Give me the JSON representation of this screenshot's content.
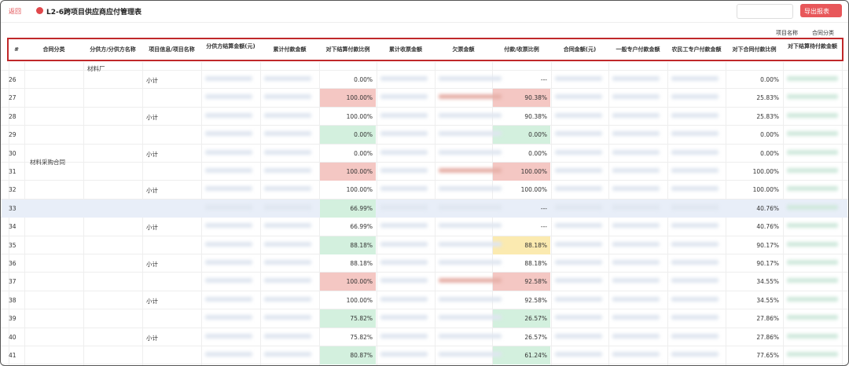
{
  "header": {
    "back": "返回",
    "title": "L2-6跨项目供应商应付管理表",
    "export": "导出报表"
  },
  "filters": [
    "项目名称",
    "合同分类"
  ],
  "table": {
    "columns": [
      "#",
      "合同分类",
      "分供方/分供方名称",
      "项目信息/项目名称",
      "分供方结算金额(元)",
      "累计付款金额",
      "对下结算付款比例",
      "累计收票金额",
      "欠票金额",
      "付款/收票比例",
      "合同金额(元)",
      "一般专户付款金额",
      "农民工专户付款金额",
      "对下合同付款比例",
      "对下结算待付款金额"
    ],
    "supplier_name": "材料厂",
    "contract_category": "材料采购合同",
    "rows": [
      {
        "no": "26",
        "project": "小计",
        "settle_ratio": "0.00%",
        "recv_ratio": "---",
        "contract_ratio": "0.00%"
      },
      {
        "no": "27",
        "settle_ratio": "100.00%",
        "settle_bg": "#f4c7c3",
        "recv_ratio": "90.38%",
        "recv_bg": "#f4c7c3",
        "contract_ratio": "25.83%"
      },
      {
        "no": "28",
        "project": "小计",
        "settle_ratio": "100.00%",
        "recv_ratio": "90.38%",
        "contract_ratio": "25.83%"
      },
      {
        "no": "29",
        "settle_ratio": "0.00%",
        "settle_bg": "#d3f0de",
        "recv_ratio": "0.00%",
        "recv_bg": "#d3f0de",
        "contract_ratio": "0.00%"
      },
      {
        "no": "30",
        "project": "小计",
        "settle_ratio": "0.00%",
        "recv_ratio": "0.00%",
        "contract_ratio": "0.00%"
      },
      {
        "no": "31",
        "settle_ratio": "100.00%",
        "settle_bg": "#f4c7c3",
        "recv_ratio": "100.00%",
        "recv_bg": "#f4c7c3",
        "contract_ratio": "100.00%"
      },
      {
        "no": "32",
        "project": "小计",
        "settle_ratio": "100.00%",
        "recv_ratio": "100.00%",
        "contract_ratio": "100.00%"
      },
      {
        "no": "33",
        "row_bg": "#e8eef8",
        "settle_ratio": "66.99%",
        "settle_bg": "#d3f0de",
        "recv_ratio": "---",
        "contract_ratio": "40.76%"
      },
      {
        "no": "34",
        "project": "小计",
        "settle_ratio": "66.99%",
        "recv_ratio": "---",
        "contract_ratio": "40.76%"
      },
      {
        "no": "35",
        "settle_ratio": "88.18%",
        "settle_bg": "#d3f0de",
        "recv_ratio": "88.18%",
        "recv_bg": "#fbeab0",
        "contract_ratio": "90.17%"
      },
      {
        "no": "36",
        "project": "小计",
        "settle_ratio": "88.18%",
        "recv_ratio": "88.18%",
        "contract_ratio": "90.17%"
      },
      {
        "no": "37",
        "settle_ratio": "100.00%",
        "settle_bg": "#f4c7c3",
        "recv_ratio": "92.58%",
        "recv_bg": "#f4c7c3",
        "contract_ratio": "34.55%"
      },
      {
        "no": "38",
        "project": "小计",
        "settle_ratio": "100.00%",
        "recv_ratio": "92.58%",
        "contract_ratio": "34.55%"
      },
      {
        "no": "39",
        "settle_ratio": "75.82%",
        "settle_bg": "#d3f0de",
        "recv_ratio": "26.57%",
        "recv_bg": "#d3f0de",
        "contract_ratio": "27.86%"
      },
      {
        "no": "40",
        "project": "小计",
        "settle_ratio": "75.82%",
        "recv_ratio": "26.57%",
        "contract_ratio": "27.86%"
      },
      {
        "no": "41",
        "settle_ratio": "80.87%",
        "settle_bg": "#d3f0de",
        "recv_ratio": "61.24%",
        "recv_bg": "#d3f0de",
        "contract_ratio": "77.65%"
      }
    ]
  }
}
